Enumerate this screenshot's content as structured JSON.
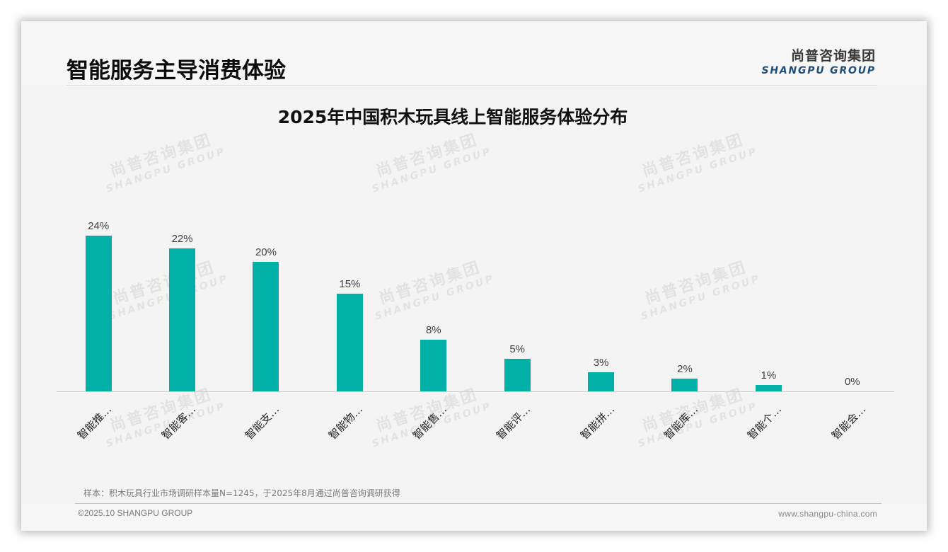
{
  "header": {
    "title": "智能服务主导消费体验",
    "logo_cn": "尚普咨询集团",
    "logo_en": "SHANGPU GROUP"
  },
  "watermark": {
    "cn": "尚普咨询集团",
    "en": "SHANGPU GROUP"
  },
  "chart_data": {
    "type": "bar",
    "title": "2025年中国积木玩具线上智能服务体验分布",
    "categories": [
      "智能推…",
      "智能客…",
      "智能支…",
      "智能物…",
      "智能售…",
      "智能评…",
      "智能拼…",
      "智能库…",
      "智能个…",
      "智能会…"
    ],
    "values": [
      24,
      22,
      20,
      15,
      8,
      5,
      3,
      2,
      1,
      0
    ],
    "value_labels": [
      "24%",
      "22%",
      "20%",
      "15%",
      "8%",
      "5%",
      "3%",
      "2%",
      "1%",
      "0%"
    ],
    "xlabel": "",
    "ylabel": "",
    "ylim": [
      0,
      28
    ],
    "grid": false,
    "legend": null,
    "bar_color": "#00b0a6",
    "unit": "%"
  },
  "footer": {
    "note": "样本：积木玩具行业市场调研样本量N=1245，于2025年8月通过尚普咨询调研获得",
    "copyright": "©2025.10 SHANGPU GROUP",
    "website": "www.shangpu-china.com"
  }
}
